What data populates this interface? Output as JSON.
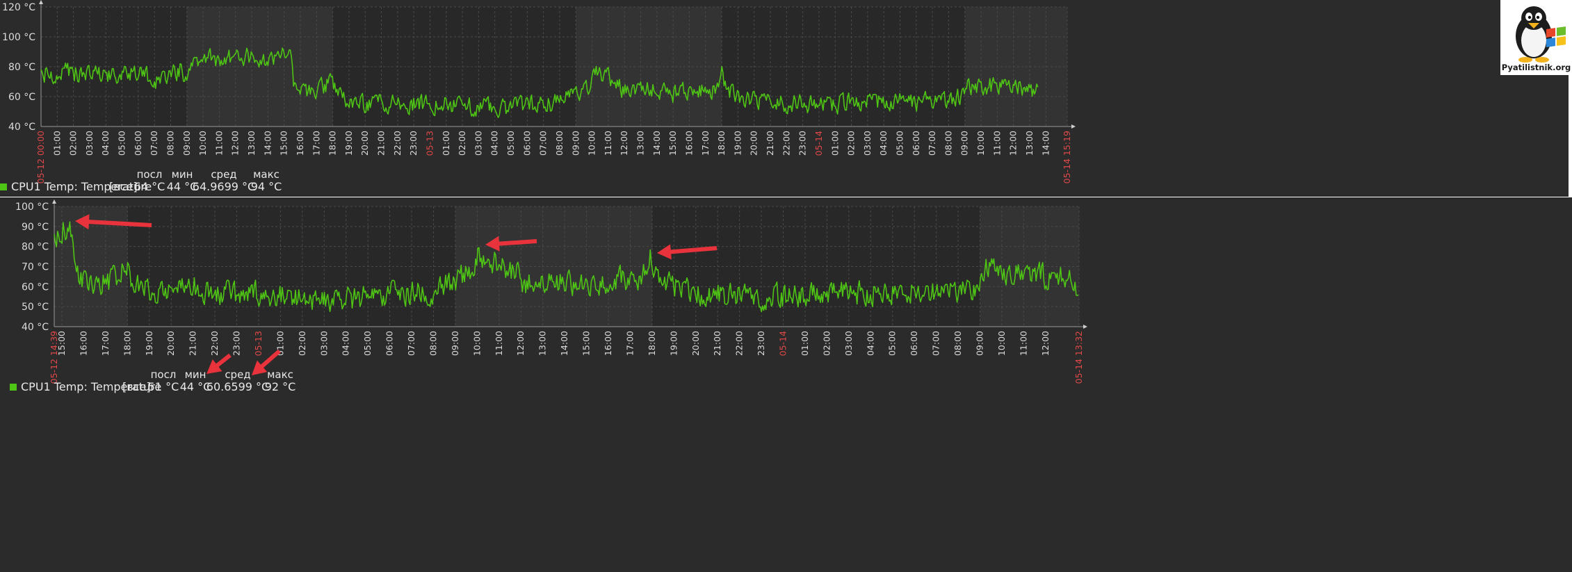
{
  "logo": {
    "text": "Pyatilistnik.org",
    "icon": "penguin-windows-logo-icon"
  },
  "colors": {
    "panel_bg": "#2b2b2b",
    "band_bg": "#333333",
    "series": "#4ec414",
    "grid": "#4a4a4a",
    "date_label": "#e04848",
    "arrow": "#e8323c"
  },
  "chart_data": [
    {
      "type": "line",
      "title": "",
      "ylim": [
        40,
        120
      ],
      "y_ticks": [
        40,
        60,
        80,
        100,
        120
      ],
      "y_tick_labels": [
        "40 °C",
        "60 °C",
        "80 °C",
        "100 °C",
        "120 °C"
      ],
      "x_start_hour": 0,
      "x_end_hour": 63.3167,
      "x_labels": [
        {
          "h": 0,
          "t": "05-12 00:00",
          "red": true
        },
        {
          "h": 1,
          "t": "01:00"
        },
        {
          "h": 2,
          "t": "02:00"
        },
        {
          "h": 3,
          "t": "03:00"
        },
        {
          "h": 4,
          "t": "04:00"
        },
        {
          "h": 5,
          "t": "05:00"
        },
        {
          "h": 6,
          "t": "06:00"
        },
        {
          "h": 7,
          "t": "07:00"
        },
        {
          "h": 8,
          "t": "08:00"
        },
        {
          "h": 9,
          "t": "09:00"
        },
        {
          "h": 10,
          "t": "10:00"
        },
        {
          "h": 11,
          "t": "11:00"
        },
        {
          "h": 12,
          "t": "12:00"
        },
        {
          "h": 13,
          "t": "13:00"
        },
        {
          "h": 14,
          "t": "14:00"
        },
        {
          "h": 15,
          "t": "15:00"
        },
        {
          "h": 16,
          "t": "16:00"
        },
        {
          "h": 17,
          "t": "17:00"
        },
        {
          "h": 18,
          "t": "18:00"
        },
        {
          "h": 19,
          "t": "19:00"
        },
        {
          "h": 20,
          "t": "20:00"
        },
        {
          "h": 21,
          "t": "21:00"
        },
        {
          "h": 22,
          "t": "22:00"
        },
        {
          "h": 23,
          "t": "23:00"
        },
        {
          "h": 24,
          "t": "05-13",
          "red": true
        },
        {
          "h": 25,
          "t": "01:00"
        },
        {
          "h": 26,
          "t": "02:00"
        },
        {
          "h": 27,
          "t": "03:00"
        },
        {
          "h": 28,
          "t": "04:00"
        },
        {
          "h": 29,
          "t": "05:00"
        },
        {
          "h": 30,
          "t": "06:00"
        },
        {
          "h": 31,
          "t": "07:00"
        },
        {
          "h": 32,
          "t": "08:00"
        },
        {
          "h": 33,
          "t": "09:00"
        },
        {
          "h": 34,
          "t": "10:00"
        },
        {
          "h": 35,
          "t": "11:00"
        },
        {
          "h": 36,
          "t": "12:00"
        },
        {
          "h": 37,
          "t": "13:00"
        },
        {
          "h": 38,
          "t": "14:00"
        },
        {
          "h": 39,
          "t": "15:00"
        },
        {
          "h": 40,
          "t": "16:00"
        },
        {
          "h": 41,
          "t": "17:00"
        },
        {
          "h": 42,
          "t": "18:00"
        },
        {
          "h": 43,
          "t": "19:00"
        },
        {
          "h": 44,
          "t": "20:00"
        },
        {
          "h": 45,
          "t": "21:00"
        },
        {
          "h": 46,
          "t": "22:00"
        },
        {
          "h": 47,
          "t": "23:00"
        },
        {
          "h": 48,
          "t": "05-14",
          "red": true
        },
        {
          "h": 49,
          "t": "01:00"
        },
        {
          "h": 50,
          "t": "02:00"
        },
        {
          "h": 51,
          "t": "03:00"
        },
        {
          "h": 52,
          "t": "04:00"
        },
        {
          "h": 53,
          "t": "05:00"
        },
        {
          "h": 54,
          "t": "06:00"
        },
        {
          "h": 55,
          "t": "07:00"
        },
        {
          "h": 56,
          "t": "08:00"
        },
        {
          "h": 57,
          "t": "09:00"
        },
        {
          "h": 58,
          "t": "10:00"
        },
        {
          "h": 59,
          "t": "11:00"
        },
        {
          "h": 60,
          "t": "12:00"
        },
        {
          "h": 61,
          "t": "13:00"
        },
        {
          "h": 62,
          "t": "14:00"
        },
        {
          "h": 63.3167,
          "t": "05-14 15:19",
          "red": true
        }
      ],
      "bands": [
        [
          9,
          18
        ],
        [
          33,
          42
        ],
        [
          57,
          63.3167
        ]
      ],
      "series": [
        {
          "name": "CPU1 Temp: Temperature",
          "data_end_hour": 61.5,
          "anchors": [
            [
              0,
              75
            ],
            [
              2,
              76
            ],
            [
              4,
              73
            ],
            [
              6,
              75
            ],
            [
              7.5,
              70
            ],
            [
              8.6,
              78
            ],
            [
              9,
              72
            ],
            [
              9.2,
              83
            ],
            [
              10,
              86
            ],
            [
              11,
              84
            ],
            [
              12,
              87
            ],
            [
              13,
              86
            ],
            [
              14,
              85
            ],
            [
              15,
              88
            ],
            [
              15.5,
              86
            ],
            [
              15.6,
              65
            ],
            [
              16,
              63
            ],
            [
              17,
              63
            ],
            [
              17.5,
              68
            ],
            [
              18,
              72
            ],
            [
              18.3,
              60
            ],
            [
              20,
              55
            ],
            [
              22,
              56
            ],
            [
              24,
              55
            ],
            [
              26,
              54
            ],
            [
              28,
              52
            ],
            [
              30,
              54
            ],
            [
              31,
              55
            ],
            [
              32,
              56
            ],
            [
              33,
              62
            ],
            [
              33.8,
              65
            ],
            [
              34.2,
              75
            ],
            [
              35,
              73
            ],
            [
              35.5,
              68
            ],
            [
              36,
              64
            ],
            [
              38,
              64
            ],
            [
              39,
              62
            ],
            [
              40,
              64
            ],
            [
              41,
              65
            ],
            [
              41.6,
              64
            ],
            [
              42,
              75
            ],
            [
              42.3,
              65
            ],
            [
              43,
              60
            ],
            [
              44,
              58
            ],
            [
              45,
              56
            ],
            [
              47,
              55
            ],
            [
              48,
              53
            ],
            [
              50,
              56
            ],
            [
              52,
              57
            ],
            [
              54,
              56
            ],
            [
              56,
              58
            ],
            [
              57,
              60
            ],
            [
              57.2,
              67
            ],
            [
              58,
              68
            ],
            [
              60,
              66
            ],
            [
              61.5,
              64
            ]
          ],
          "noise": 5,
          "legend": {
            "label": "[все]",
            "last": "64 °C",
            "min": "44 °C",
            "avg": "64.9699 °C",
            "max": "94 °C"
          }
        }
      ]
    },
    {
      "type": "line",
      "title": "",
      "ylim": [
        40,
        100
      ],
      "y_ticks": [
        40,
        50,
        60,
        70,
        80,
        90,
        100
      ],
      "y_tick_labels": [
        "40 °C",
        "50 °C",
        "60 °C",
        "70 °C",
        "80 °C",
        "90 °C",
        "100 °C"
      ],
      "x_start_hour": 14.65,
      "x_end_hour": 61.5333,
      "x_labels": [
        {
          "h": 14.65,
          "t": "05-12 14:39",
          "red": true
        },
        {
          "h": 15,
          "t": "15:00"
        },
        {
          "h": 16,
          "t": "16:00"
        },
        {
          "h": 17,
          "t": "17:00"
        },
        {
          "h": 18,
          "t": "18:00"
        },
        {
          "h": 19,
          "t": "19:00"
        },
        {
          "h": 20,
          "t": "20:00"
        },
        {
          "h": 21,
          "t": "21:00"
        },
        {
          "h": 22,
          "t": "22:00"
        },
        {
          "h": 23,
          "t": "23:00"
        },
        {
          "h": 24,
          "t": "05-13",
          "red": true
        },
        {
          "h": 25,
          "t": "01:00"
        },
        {
          "h": 26,
          "t": "02:00"
        },
        {
          "h": 27,
          "t": "03:00"
        },
        {
          "h": 28,
          "t": "04:00"
        },
        {
          "h": 29,
          "t": "05:00"
        },
        {
          "h": 30,
          "t": "06:00"
        },
        {
          "h": 31,
          "t": "07:00"
        },
        {
          "h": 32,
          "t": "08:00"
        },
        {
          "h": 33,
          "t": "09:00"
        },
        {
          "h": 34,
          "t": "10:00"
        },
        {
          "h": 35,
          "t": "11:00"
        },
        {
          "h": 36,
          "t": "12:00"
        },
        {
          "h": 37,
          "t": "13:00"
        },
        {
          "h": 38,
          "t": "14:00"
        },
        {
          "h": 39,
          "t": "15:00"
        },
        {
          "h": 40,
          "t": "16:00"
        },
        {
          "h": 41,
          "t": "17:00"
        },
        {
          "h": 42,
          "t": "18:00"
        },
        {
          "h": 43,
          "t": "19:00"
        },
        {
          "h": 44,
          "t": "20:00"
        },
        {
          "h": 45,
          "t": "21:00"
        },
        {
          "h": 46,
          "t": "22:00"
        },
        {
          "h": 47,
          "t": "23:00"
        },
        {
          "h": 48,
          "t": "05-14",
          "red": true
        },
        {
          "h": 49,
          "t": "01:00"
        },
        {
          "h": 50,
          "t": "02:00"
        },
        {
          "h": 51,
          "t": "03:00"
        },
        {
          "h": 52,
          "t": "04:00"
        },
        {
          "h": 53,
          "t": "05:00"
        },
        {
          "h": 54,
          "t": "06:00"
        },
        {
          "h": 55,
          "t": "07:00"
        },
        {
          "h": 56,
          "t": "08:00"
        },
        {
          "h": 57,
          "t": "09:00"
        },
        {
          "h": 58,
          "t": "10:00"
        },
        {
          "h": 59,
          "t": "11:00"
        },
        {
          "h": 60,
          "t": "12:00"
        },
        {
          "h": 61.5333,
          "t": "05-14 13:32",
          "red": true
        }
      ],
      "bands": [
        [
          14.65,
          18
        ],
        [
          33,
          42
        ],
        [
          57,
          61.5333
        ]
      ],
      "series": [
        {
          "name": "CPU1 Temp: Temperature",
          "data_end_hour": 61.5,
          "anchors": [
            [
              14.65,
              88
            ],
            [
              14.9,
              86
            ],
            [
              15.1,
              90
            ],
            [
              15.4,
              88
            ],
            [
              15.6,
              66
            ],
            [
              16,
              63
            ],
            [
              17,
              62
            ],
            [
              17.5,
              64
            ],
            [
              17.9,
              74
            ],
            [
              18.2,
              60
            ],
            [
              19,
              58
            ],
            [
              20,
              59
            ],
            [
              21,
              60
            ],
            [
              22,
              57
            ],
            [
              23,
              56
            ],
            [
              24,
              57
            ],
            [
              25,
              56
            ],
            [
              26,
              53
            ],
            [
              27,
              52
            ],
            [
              28,
              53
            ],
            [
              29,
              55
            ],
            [
              30,
              56
            ],
            [
              31,
              57
            ],
            [
              32,
              58
            ],
            [
              33,
              62
            ],
            [
              33.7,
              68
            ],
            [
              34,
              77
            ],
            [
              34.5,
              73
            ],
            [
              35,
              72
            ],
            [
              35.8,
              67
            ],
            [
              36,
              62
            ],
            [
              37,
              61
            ],
            [
              38,
              62
            ],
            [
              39,
              61
            ],
            [
              40,
              63
            ],
            [
              41,
              64
            ],
            [
              41.6,
              65
            ],
            [
              41.9,
              77
            ],
            [
              42.3,
              62
            ],
            [
              43,
              60
            ],
            [
              44,
              57
            ],
            [
              45,
              56
            ],
            [
              46,
              55
            ],
            [
              47,
              54
            ],
            [
              48,
              55
            ],
            [
              49,
              56
            ],
            [
              50,
              57
            ],
            [
              51,
              56
            ],
            [
              52,
              57
            ],
            [
              53,
              57
            ],
            [
              54,
              58
            ],
            [
              55,
              58
            ],
            [
              56,
              58
            ],
            [
              57,
              60
            ],
            [
              57.3,
              70
            ],
            [
              58,
              68
            ],
            [
              59,
              66
            ],
            [
              60,
              65
            ],
            [
              61,
              65
            ],
            [
              61.4,
              60
            ],
            [
              61.5,
              51
            ]
          ],
          "noise": 5,
          "legend": {
            "label": "[все]",
            "last": "51 °C",
            "min": "44 °C",
            "avg": "60.6599 °C",
            "max": "92 °C"
          }
        }
      ]
    }
  ],
  "legend_headers": {
    "last": "посл",
    "min": "мин",
    "avg": "сред",
    "max": "макс"
  }
}
